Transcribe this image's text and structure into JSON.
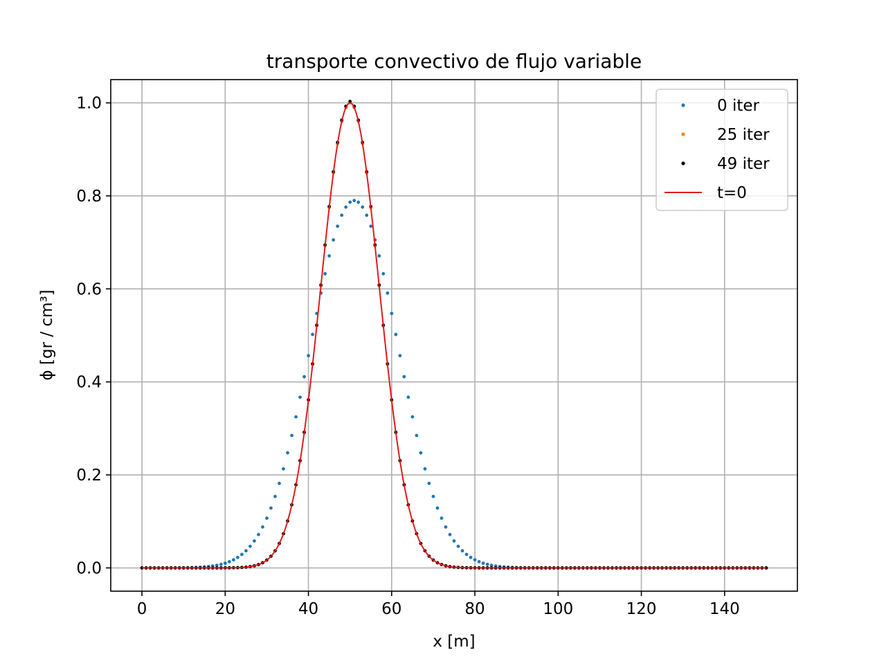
{
  "chart_data": {
    "type": "scatter",
    "title": "transporte convectivo de flujo variable",
    "xlabel": "x [m]",
    "ylabel": "ϕ [gr / cm³]",
    "xlim": [
      -7.5,
      157.5
    ],
    "ylim": [
      -0.05,
      1.05
    ],
    "xticks": [
      0,
      20,
      40,
      60,
      80,
      100,
      120,
      140
    ],
    "yticks": [
      0.0,
      0.2,
      0.4,
      0.6,
      0.8,
      1.0
    ],
    "xtick_labels": [
      "0",
      "20",
      "40",
      "60",
      "80",
      "100",
      "120",
      "140"
    ],
    "ytick_labels": [
      "0.0",
      "0.2",
      "0.4",
      "0.6",
      "0.8",
      "1.0"
    ],
    "grid": true,
    "legend_position": "top-right",
    "x": {
      "start": 0,
      "end": 150,
      "step": 1
    },
    "series": [
      {
        "name": "0 iter",
        "style": "dots",
        "color": "#1f77b4",
        "shape": {
          "type": "gaussian",
          "amplitude": 0.79,
          "center": 51,
          "sigma": 10.5
        },
        "values": [
          0.0,
          0.0,
          0.0,
          0.001,
          0.001,
          0.002,
          0.004,
          0.008,
          0.015,
          0.027,
          0.046,
          0.076,
          0.121,
          0.183,
          0.264,
          0.364,
          0.477,
          0.595,
          0.703,
          0.781,
          0.79,
          0.781,
          0.703,
          0.595,
          0.477,
          0.364,
          0.264,
          0.183,
          0.121,
          0.076,
          0.046,
          0.027,
          0.015,
          0.008,
          0.004,
          0.002,
          0.001,
          0.0
        ]
      },
      {
        "name": "25 iter",
        "style": "dots",
        "color": "#ff7f0e",
        "shape": {
          "type": "gaussian",
          "amplitude": 1.0,
          "center": 50,
          "sigma": 7.0
        },
        "values": [
          0.0,
          0.0,
          0.0,
          0.0,
          0.0,
          0.002,
          0.01,
          0.04,
          0.125,
          0.3,
          0.56,
          0.85,
          1.0,
          0.85,
          0.56,
          0.3,
          0.125,
          0.04,
          0.01,
          0.002,
          0.0,
          0.0
        ]
      },
      {
        "name": "49 iter",
        "style": "dots",
        "color": "#000000",
        "shape": {
          "type": "gaussian",
          "amplitude": 1.003,
          "center": 50,
          "sigma": 7.0
        },
        "values": [
          0.0,
          0.0,
          0.0,
          0.0,
          0.0,
          0.002,
          0.01,
          0.04,
          0.125,
          0.3,
          0.56,
          0.85,
          1.003,
          0.85,
          0.56,
          0.3,
          0.125,
          0.04,
          0.01,
          0.002,
          0.0,
          0.0
        ]
      },
      {
        "name": "t=0",
        "style": "line",
        "color": "#e31a1c",
        "shape": {
          "type": "gaussian",
          "amplitude": 1.0,
          "center": 50,
          "sigma": 7.0
        },
        "values": [
          0.0,
          0.0,
          0.0,
          0.0,
          0.0,
          0.002,
          0.01,
          0.04,
          0.125,
          0.3,
          0.56,
          0.85,
          1.0,
          0.85,
          0.56,
          0.3,
          0.125,
          0.04,
          0.01,
          0.002,
          0.0,
          0.0
        ]
      }
    ]
  }
}
